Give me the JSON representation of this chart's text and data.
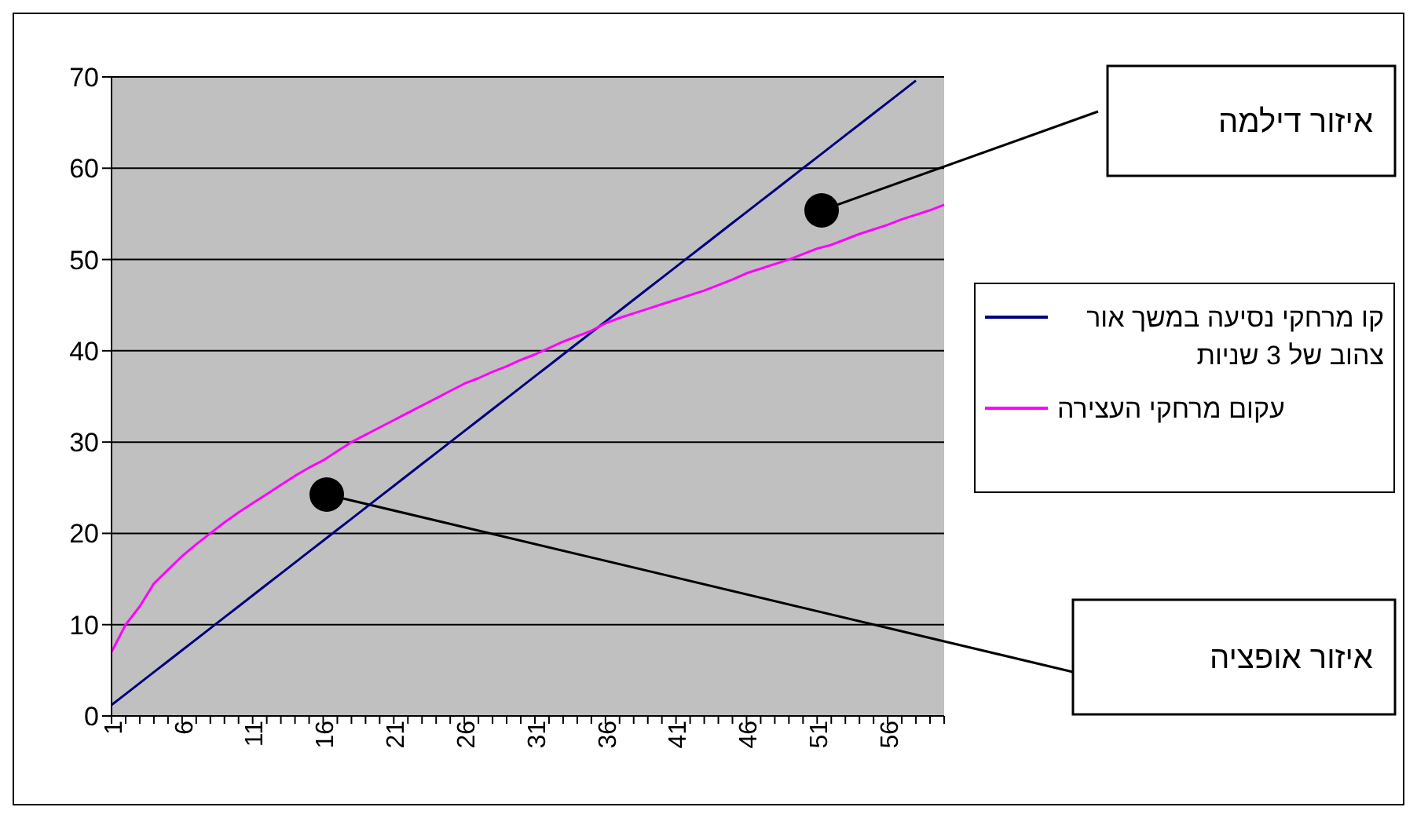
{
  "chart_data": {
    "type": "line",
    "categories": [
      "1",
      null,
      null,
      null,
      null,
      "6",
      null,
      null,
      null,
      null,
      "11",
      null,
      null,
      null,
      null,
      "16",
      null,
      null,
      null,
      null,
      "21",
      null,
      null,
      null,
      null,
      "26",
      null,
      null,
      null,
      null,
      "31",
      null,
      null,
      null,
      null,
      "36",
      null,
      null,
      null,
      null,
      "41",
      null,
      null,
      null,
      null,
      "46",
      null,
      null,
      null,
      null,
      "51",
      null,
      null,
      null,
      null,
      "56",
      null,
      null,
      null,
      null
    ],
    "series": [
      {
        "name": "קו מרחקי נסיעה במשך אור צהוב של 3 שניות",
        "color": "#000080",
        "values": [
          1.2,
          2.4,
          3.6,
          4.8,
          6,
          7.2,
          8.4,
          9.6,
          10.8,
          12,
          13.2,
          14.4,
          15.6,
          16.8,
          18,
          19.2,
          20.4,
          21.6,
          22.8,
          24,
          25.2,
          26.4,
          27.6,
          28.8,
          30,
          31.2,
          32.4,
          33.6,
          34.8,
          36,
          37.2,
          38.4,
          39.6,
          40.8,
          42,
          43.2,
          44.4,
          45.6,
          46.8,
          48,
          49.2,
          50.4,
          51.6,
          52.8,
          54,
          55.2,
          56.4,
          57.6,
          58.8,
          60,
          61.2,
          62.4,
          63.6,
          64.8,
          66,
          67.2,
          68.4,
          69.6,
          null,
          null
        ]
      },
      {
        "name": "עקום מרחקי העצירה",
        "color": "#ff00ff",
        "values": [
          7,
          10,
          12,
          14.5,
          16,
          17.5,
          18.8,
          20,
          21.2,
          22.3,
          23.3,
          24.3,
          25.3,
          26.3,
          27.2,
          28,
          29,
          30,
          30.8,
          31.6,
          32.4,
          33.2,
          34,
          34.8,
          35.6,
          36.4,
          37,
          37.7,
          38.3,
          39,
          39.6,
          40.3,
          41,
          41.6,
          42.2,
          43,
          43.6,
          44.1,
          44.6,
          45.1,
          45.6,
          46.1,
          46.6,
          47.2,
          47.8,
          48.5,
          49,
          49.5,
          50,
          50.6,
          51.2,
          51.6,
          52.2,
          52.8,
          53.3,
          53.8,
          54.4,
          54.9,
          55.4,
          56
        ]
      }
    ],
    "ylim": [
      0,
      70
    ],
    "yticks": [
      0,
      10,
      20,
      30,
      40,
      50,
      60,
      70
    ],
    "grid": "y",
    "legend": "right",
    "marker": "none",
    "line_style": "solid",
    "annotations": [
      "איזור אופציה",
      "איזור דילמה"
    ]
  }
}
